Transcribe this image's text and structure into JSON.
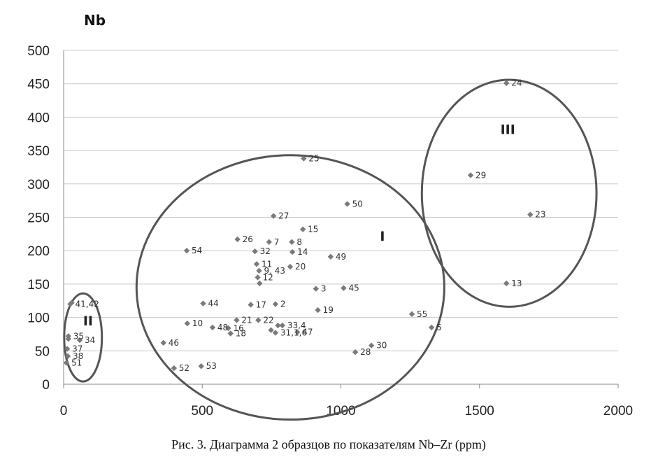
{
  "chart_data": {
    "type": "scatter",
    "title": "Nb",
    "xlabel": "",
    "ylabel": "Nb",
    "xlim": [
      0,
      2000
    ],
    "ylim": [
      0,
      500
    ],
    "xticks": [
      "0",
      "500",
      "1000",
      "1500",
      "2000"
    ],
    "yticks": [
      "0",
      "50",
      "100",
      "150",
      "200",
      "250",
      "300",
      "350",
      "400",
      "450",
      "500"
    ],
    "grid": "horizontal",
    "marker_color": "#7a7a7a",
    "ellipse_color": "#555555",
    "points": [
      {
        "label": "24",
        "x": 1597,
        "y": 451
      },
      {
        "label": "29",
        "x": 1468,
        "y": 313
      },
      {
        "label": "23",
        "x": 1683,
        "y": 254
      },
      {
        "label": "13",
        "x": 1597,
        "y": 151
      },
      {
        "label": "25",
        "x": 866,
        "y": 338
      },
      {
        "label": "50",
        "x": 1023,
        "y": 270
      },
      {
        "label": "27",
        "x": 757,
        "y": 252
      },
      {
        "label": "15",
        "x": 863,
        "y": 232
      },
      {
        "label": "26",
        "x": 627,
        "y": 217
      },
      {
        "label": "7",
        "x": 741,
        "y": 213
      },
      {
        "label": "8",
        "x": 823,
        "y": 213
      },
      {
        "label": "32",
        "x": 690,
        "y": 199
      },
      {
        "label": "14",
        "x": 825,
        "y": 198
      },
      {
        "label": "49",
        "x": 963,
        "y": 191
      },
      {
        "label": "11",
        "x": 696,
        "y": 180
      },
      {
        "label": "20",
        "x": 817,
        "y": 176
      },
      {
        "label": "9, 43",
        "x": 705,
        "y": 170
      },
      {
        "label": "12",
        "x": 700,
        "y": 160
      },
      {
        "label": "",
        "x": 707,
        "y": 151
      },
      {
        "label": "3",
        "x": 910,
        "y": 143
      },
      {
        "label": "45",
        "x": 1010,
        "y": 144
      },
      {
        "label": "54",
        "x": 444,
        "y": 200
      },
      {
        "label": "17",
        "x": 675,
        "y": 119
      },
      {
        "label": "2",
        "x": 764,
        "y": 120
      },
      {
        "label": "19",
        "x": 917,
        "y": 111
      },
      {
        "label": "44",
        "x": 503,
        "y": 121
      },
      {
        "label": "21",
        "x": 624,
        "y": 96
      },
      {
        "label": "22",
        "x": 702,
        "y": 96
      },
      {
        "label": "33,4",
        "x": 789,
        "y": 88
      },
      {
        "label": "",
        "x": 773,
        "y": 88
      },
      {
        "label": "55",
        "x": 1256,
        "y": 105
      },
      {
        "label": "5",
        "x": 1327,
        "y": 85
      },
      {
        "label": "10",
        "x": 446,
        "y": 91
      },
      {
        "label": "16",
        "x": 594,
        "y": 84
      },
      {
        "label": "48",
        "x": 537,
        "y": 85
      },
      {
        "label": "18",
        "x": 602,
        "y": 76
      },
      {
        "label": "",
        "x": 748,
        "y": 81
      },
      {
        "label": "31,1,6",
        "x": 764,
        "y": 77
      },
      {
        "label": "47",
        "x": 843,
        "y": 78
      },
      {
        "label": "46",
        "x": 360,
        "y": 62
      },
      {
        "label": "28",
        "x": 1052,
        "y": 48
      },
      {
        "label": "30",
        "x": 1110,
        "y": 58
      },
      {
        "label": "52",
        "x": 398,
        "y": 24
      },
      {
        "label": "53",
        "x": 496,
        "y": 27
      },
      {
        "label": "41,42",
        "x": 24,
        "y": 120
      },
      {
        "label": "",
        "x": 29,
        "y": 122
      },
      {
        "label": "35",
        "x": 17,
        "y": 72
      },
      {
        "label": "",
        "x": 17,
        "y": 68
      },
      {
        "label": "34",
        "x": 58,
        "y": 66
      },
      {
        "label": "37",
        "x": 13,
        "y": 53
      },
      {
        "label": "38",
        "x": 15,
        "y": 42
      },
      {
        "label": "51",
        "x": 10,
        "y": 32
      }
    ],
    "groups": [
      {
        "name": "I",
        "label_x": 1150,
        "label_y": 215,
        "cx": 818,
        "cy": 145,
        "rx": 555,
        "ry": 198
      },
      {
        "name": "II",
        "label_x": 88,
        "label_y": 88,
        "cx": 70,
        "cy": 70,
        "rx": 68,
        "ry": 66
      },
      {
        "name": "III",
        "label_x": 1602,
        "label_y": 375,
        "cx": 1607,
        "cy": 286,
        "rx": 315,
        "ry": 170
      }
    ]
  },
  "caption": "Рис. 3. Диаграмма 2 образцов по показателям Nb–Zr (ppm)"
}
